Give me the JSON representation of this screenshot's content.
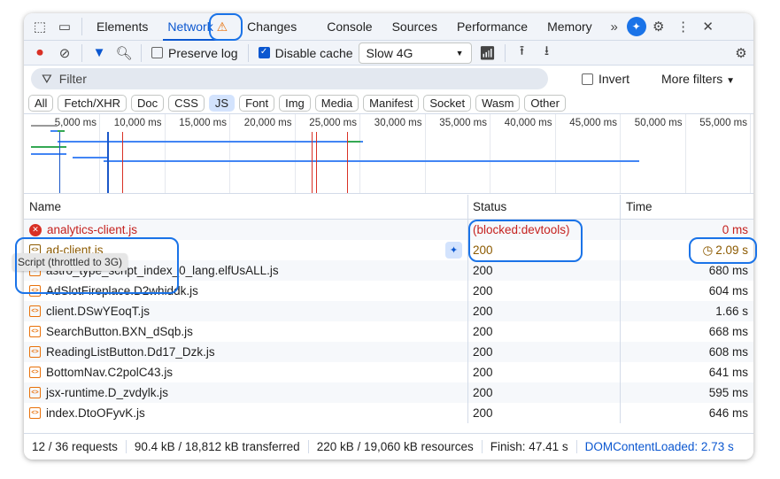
{
  "tabs": {
    "items": [
      "Elements",
      "Network",
      "Changes",
      "Console",
      "Sources",
      "Performance",
      "Memory"
    ],
    "active": "Network",
    "more": "»"
  },
  "toolbar": {
    "preserve_log": "Preserve log",
    "preserve_log_checked": false,
    "disable_cache": "Disable cache",
    "disable_cache_checked": true,
    "throttle": "Slow 4G"
  },
  "filter": {
    "placeholder": "Filter",
    "invert": "Invert",
    "more_filters": "More filters"
  },
  "types": [
    "All",
    "Fetch/XHR",
    "Doc",
    "CSS",
    "JS",
    "Font",
    "Img",
    "Media",
    "Manifest",
    "Socket",
    "Wasm",
    "Other"
  ],
  "types_active": "JS",
  "overview": {
    "ticks": [
      "5,000 ms",
      "10,000 ms",
      "15,000 ms",
      "20,000 ms",
      "25,000 ms",
      "30,000 ms",
      "35,000 ms",
      "40,000 ms",
      "45,000 ms",
      "50,000 ms",
      "55,000 ms"
    ]
  },
  "table": {
    "headers": {
      "name": "Name",
      "status": "Status",
      "time": "Time"
    },
    "rows": [
      {
        "name": "analytics-client.js",
        "status": "(blocked:devtools)",
        "time": "0 ms",
        "kind": "error"
      },
      {
        "name": "ad-client.js",
        "status": "200",
        "time": "2.09 s",
        "kind": "throttled"
      },
      {
        "name": "astro_type_script_index_0_lang.elfUsALL.js",
        "status": "200",
        "time": "680 ms"
      },
      {
        "name": "AdSlotFireplace.D2whiddk.js",
        "status": "200",
        "time": "604 ms"
      },
      {
        "name": "client.DSwYEoqT.js",
        "status": "200",
        "time": "1.66 s"
      },
      {
        "name": "SearchButton.BXN_dSqb.js",
        "status": "200",
        "time": "668 ms"
      },
      {
        "name": "ReadingListButton.Dd17_Dzk.js",
        "status": "200",
        "time": "608 ms"
      },
      {
        "name": "BottomNav.C2polC43.js",
        "status": "200",
        "time": "641 ms"
      },
      {
        "name": "jsx-runtime.D_zvdylk.js",
        "status": "200",
        "time": "595 ms"
      },
      {
        "name": "index.DtoOFyvK.js",
        "status": "200",
        "time": "646 ms"
      }
    ],
    "tooltip": "Script (throttled to 3G)"
  },
  "footer": {
    "requests": "12 / 36 requests",
    "transferred": "90.4 kB / 18,812 kB transferred",
    "resources": "220 kB / 19,060 kB resources",
    "finish": "Finish: 47.41 s",
    "dcl": "DOMContentLoaded: 2.73 s"
  }
}
